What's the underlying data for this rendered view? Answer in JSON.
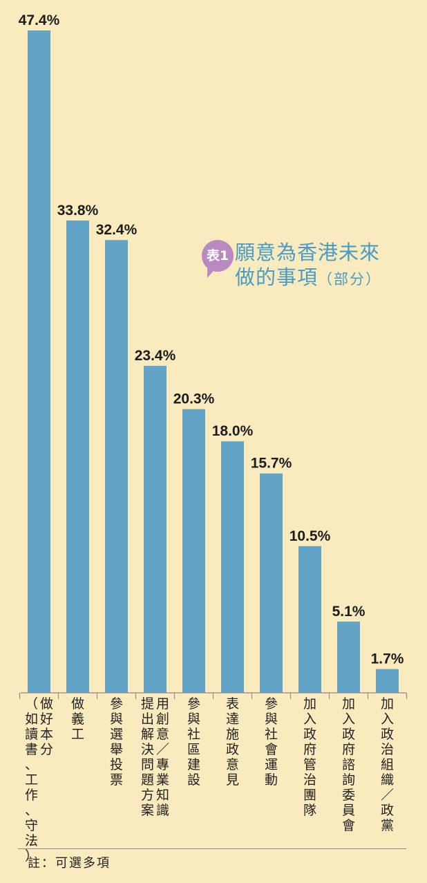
{
  "chart_data": {
    "type": "bar",
    "title_badge": "表1",
    "title_line1": "願意為香港未來",
    "title_line2": "做的事項",
    "title_sub": "（部分）",
    "categories": [
      "做好本分（如讀書、工作、守法）",
      "做義工",
      "參與選舉投票",
      "用創意／專業知識提出解決問題方案",
      "參與社區建設",
      "表達施政意見",
      "參與社會運動",
      "加入政府管治團隊",
      "加入政府諮詢委員會",
      "加入政治組織／政黨"
    ],
    "category_columns": [
      [
        "做好本分",
        "（如讀書、工作、守法）"
      ],
      [
        "做義工"
      ],
      [
        "參與選舉投票"
      ],
      [
        "用創意／專業知識",
        "提出解決問題方案"
      ],
      [
        "參與社區建設"
      ],
      [
        "表達施政意見"
      ],
      [
        "參與社會運動"
      ],
      [
        "加入政府管治團隊"
      ],
      [
        "加入政府諮詢委員會"
      ],
      [
        "加入政治組織／政黨"
      ]
    ],
    "values": [
      47.4,
      33.8,
      32.4,
      23.4,
      20.3,
      18.0,
      15.7,
      10.5,
      5.1,
      1.7
    ],
    "value_labels": [
      "47.4%",
      "33.8%",
      "32.4%",
      "23.4%",
      "20.3%",
      "18.0%",
      "15.7%",
      "10.5%",
      "5.1%",
      "1.7%"
    ],
    "ylim": [
      0,
      47.4
    ],
    "bar_color": "#62a3c6",
    "title_color": "#4a9bc4",
    "badge_color": "#b88ac0",
    "background_color": "#f9ebbe",
    "footnote": "註：可選多項"
  }
}
